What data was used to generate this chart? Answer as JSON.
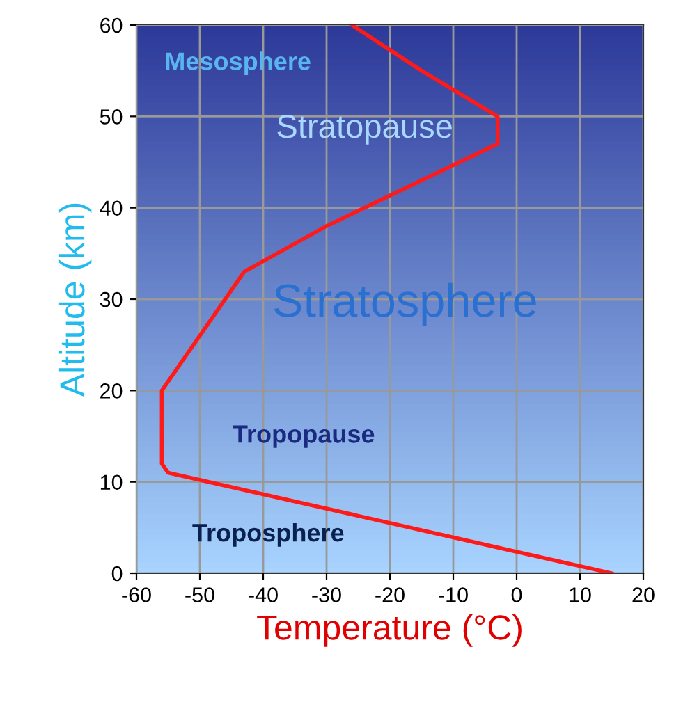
{
  "chart_data": {
    "type": "line",
    "xlabel": "Temperature (°C)",
    "ylabel": "Altitude (km)",
    "x": [
      15,
      -55,
      -56,
      -56,
      -43,
      -30,
      -3,
      -3,
      -15,
      -26
    ],
    "values": [
      0,
      11,
      12,
      20,
      33,
      38,
      47,
      50,
      55,
      60
    ],
    "color": "#ff1a1a",
    "xlim": [
      -60,
      20
    ],
    "ylim": [
      0,
      60
    ],
    "xticks": [
      -60,
      -50,
      -40,
      -30,
      -20,
      -10,
      0,
      10,
      20
    ],
    "yticks": [
      0,
      10,
      20,
      30,
      40,
      50,
      60
    ],
    "grid": true,
    "annotations": [
      "Mesosphere",
      "Stratopause",
      "Stratosphere",
      "Tropopause",
      "Troposphere"
    ]
  }
}
